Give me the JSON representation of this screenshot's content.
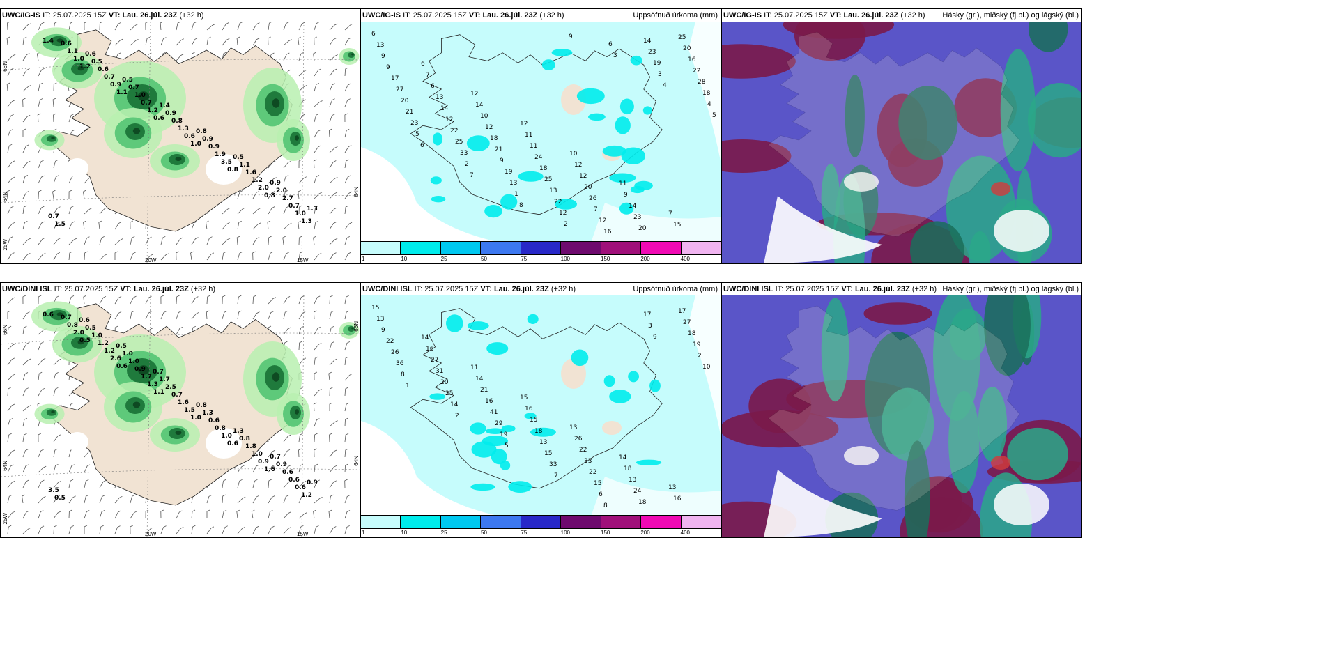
{
  "rows": [
    {
      "model": "UWC/IG-IS",
      "it_label": "IT:",
      "it_value": "25.07.2025 15Z",
      "vt_label": "VT:",
      "vt_value": "Lau. 26.júl. 23Z",
      "lead": "(+32 h)",
      "axis": {
        "lat_66": "66N",
        "lat_64": "64N",
        "lon_25": "25W",
        "lon_20": "20W",
        "lon_15": "15W",
        "lat_66_right": "66N",
        "lat_64_right": "64N"
      }
    },
    {
      "model": "UWC/DINI ISL",
      "it_label": "IT:",
      "it_value": "25.07.2025 15Z",
      "vt_label": "VT:",
      "vt_value": "Lau. 26.júl. 23Z",
      "lead": "(+32 h)",
      "axis": {
        "lat_66": "66N",
        "lat_64": "64N",
        "lon_25": "25W",
        "lon_20": "20W",
        "lon_15": "15W",
        "lat_66_right": "66N",
        "lat_64_right": "64N"
      }
    }
  ],
  "panels": {
    "precip_title": "",
    "accum_title": "Uppsöfnuð úrkoma (mm)",
    "cloud_title": "Hásky (gr.), miðský (fj.bl.) og lágský (bl.)"
  },
  "colorbar": {
    "labels": [
      "1",
      "10",
      "25",
      "50",
      "75",
      "100",
      "150",
      "200",
      "400"
    ],
    "colors": [
      "#c6fcfc",
      "#00ecec",
      "#00c8f0",
      "#3c78f0",
      "#2828c8",
      "#6e0a6e",
      "#a0107a",
      "#f00ab4",
      "#f0b4f0"
    ]
  },
  "colors": {
    "land": "#f1e3d3",
    "precip_light": "#b9f0b0",
    "precip_mid": "#5ec97a",
    "precip_dark": "#1f7a3c",
    "precip_vdark": "#0e4a22",
    "accum_fill": "#c6fcfc",
    "accum_mid": "#00ecec",
    "high_cloud": "#7a1a4a",
    "mid_cloud": "#5a55c8",
    "low_cloud": "#2aa888",
    "low_cloud_dark": "#1a6e5a"
  },
  "precip_labels": [
    [
      "1.4",
      "1.2",
      "1.1",
      "0.6",
      "1.0",
      "0.8",
      "0.8",
      "1.3",
      "1.0",
      "0.9",
      "1.2",
      "0.6",
      "3.5",
      "2.0",
      "1.0",
      "1.1",
      "0.7",
      "0.7",
      "1.3",
      "1.9",
      "1.2",
      "0.7",
      "0.6",
      "0.6",
      "1.0",
      "0.8",
      "0.9",
      "1.6",
      "2.7",
      "1.5",
      "0.5",
      "0.7",
      "0.9",
      "0.9",
      "1.1",
      "2.0",
      "0.7",
      "0.6",
      "0.5",
      "1.4",
      "0.8",
      "0.5",
      "0.9",
      "1.3"
    ],
    [
      "0.6",
      "0.5",
      "0.6",
      "1.1",
      "1.0",
      "0.6",
      "1.6",
      "1.2",
      "2.0",
      "2.6",
      "1.3",
      "1.5",
      "1.0",
      "0.9",
      "0.6",
      "0.8",
      "1.2",
      "1.7",
      "1.6",
      "0.8",
      "1.0",
      "0.6",
      "0.7",
      "1.2",
      "0.9",
      "0.7",
      "0.6",
      "1.8",
      "0.6",
      "0.5",
      "1.0",
      "1.0",
      "2.5",
      "1.3",
      "0.8",
      "0.9",
      "3.5",
      "0.5",
      "1.0",
      "1.7",
      "0.8",
      "1.3",
      "0.7",
      "0.9",
      "0.6",
      "0.5",
      "0.7"
    ]
  ],
  "accum_labels": [
    [
      "6",
      "6",
      "12",
      "12",
      "10",
      "11",
      "7",
      "13",
      "7",
      "14",
      "11",
      "12",
      "9",
      "15",
      "9",
      "6",
      "10",
      "11",
      "12",
      "14",
      "25",
      "9",
      "13",
      "12",
      "24",
      "20",
      "23",
      "20",
      "17",
      "14",
      "18",
      "18",
      "26",
      "20",
      "16",
      "27",
      "12",
      "21",
      "25",
      "7",
      "14",
      "22",
      "20",
      "22",
      "9",
      "13",
      "12",
      "23",
      "28",
      "21",
      "25",
      "19",
      "22",
      "16",
      "19",
      "18",
      "23",
      "33",
      "13",
      "12",
      "6",
      "3",
      "4",
      "5",
      "2",
      "1",
      "2",
      "3",
      "4",
      "5",
      "6",
      "7",
      "8",
      "9"
    ],
    [
      "15",
      "14",
      "11",
      "15",
      "13",
      "14",
      "13",
      "13",
      "16",
      "14",
      "16",
      "26",
      "18",
      "16",
      "9",
      "27",
      "21",
      "15",
      "22",
      "13",
      "17",
      "22",
      "31",
      "16",
      "18",
      "33",
      "24",
      "27",
      "26",
      "20",
      "41",
      "13",
      "22",
      "18",
      "18",
      "36",
      "25",
      "29",
      "15",
      "15",
      "17",
      "19",
      "8",
      "14",
      "19",
      "33",
      "6",
      "3",
      "2",
      "1",
      "2",
      "5",
      "7",
      "8",
      "9",
      "10"
    ]
  ]
}
